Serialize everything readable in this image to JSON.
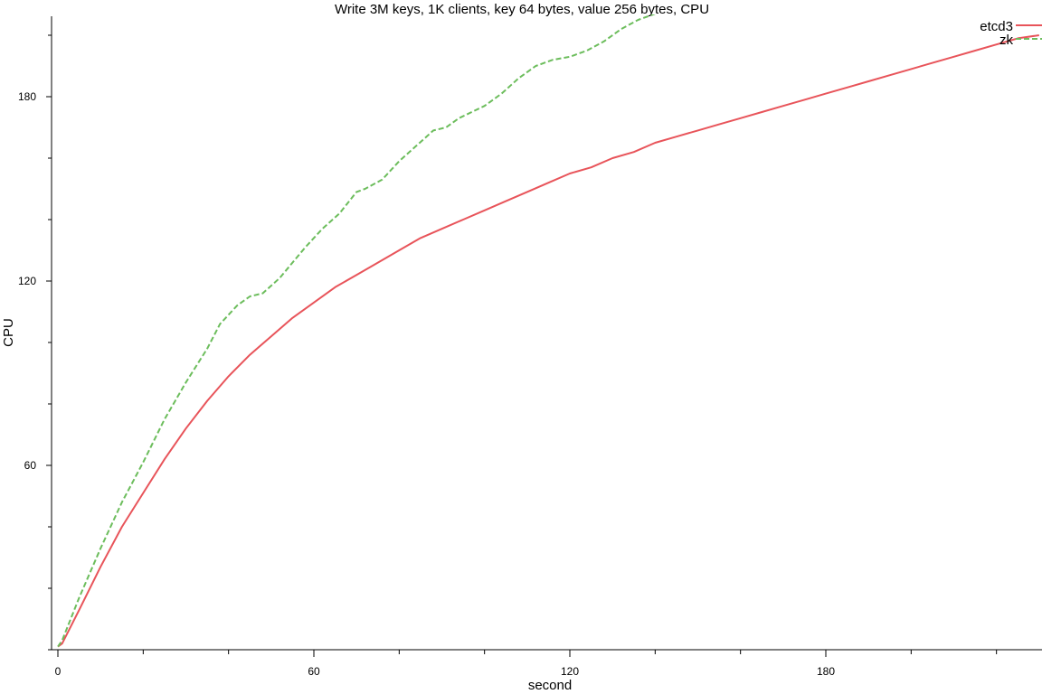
{
  "chart_data": {
    "type": "line",
    "title": "Write 3M keys, 1K clients, key 64 bytes, value 256 bytes, CPU",
    "xlabel": "second",
    "ylabel": "CPU",
    "xlim": [
      0,
      230
    ],
    "ylim": [
      0,
      205
    ],
    "xticks": [
      0,
      60,
      120,
      180
    ],
    "yticks": [
      60,
      120,
      180
    ],
    "grid": false,
    "legend_position": "top-right",
    "series": [
      {
        "name": "etcd3",
        "color": "#e8545a",
        "dash": "solid",
        "x": [
          0,
          1,
          5,
          10,
          15,
          20,
          25,
          30,
          35,
          40,
          45,
          50,
          55,
          60,
          65,
          70,
          75,
          80,
          85,
          90,
          95,
          100,
          105,
          110,
          115,
          120,
          125,
          130,
          135,
          140,
          145,
          150,
          155,
          160,
          165,
          170,
          175,
          180,
          185,
          190,
          195,
          200,
          205,
          210,
          215,
          220,
          225,
          230
        ],
        "values": [
          1,
          2,
          13,
          27,
          40,
          51,
          62,
          72,
          81,
          89,
          96,
          102,
          108,
          113,
          118,
          122,
          126,
          130,
          134,
          137,
          140,
          143,
          146,
          149,
          152,
          155,
          157,
          160,
          162,
          165,
          167,
          169,
          171,
          173,
          175,
          177,
          179,
          181,
          183,
          185,
          187,
          189,
          191,
          193,
          195,
          197,
          199,
          200
        ]
      },
      {
        "name": "zk",
        "color": "#6cbd5c",
        "dash": "dashed",
        "x": [
          0,
          1,
          5,
          10,
          15,
          20,
          25,
          30,
          35,
          38,
          42,
          45,
          48,
          52,
          55,
          58,
          62,
          66,
          70,
          72,
          76,
          80,
          84,
          88,
          91,
          94,
          97,
          100,
          104,
          108,
          112,
          116,
          120,
          124,
          128,
          132,
          136,
          140
        ],
        "values": [
          1,
          3,
          17,
          33,
          48,
          61,
          75,
          87,
          98,
          106,
          112,
          115,
          116,
          121,
          126,
          131,
          137,
          142,
          149,
          150,
          153,
          159,
          164,
          169,
          170,
          173,
          175,
          177,
          181,
          186,
          190,
          192,
          193,
          195,
          198,
          202,
          205,
          207
        ]
      }
    ]
  }
}
